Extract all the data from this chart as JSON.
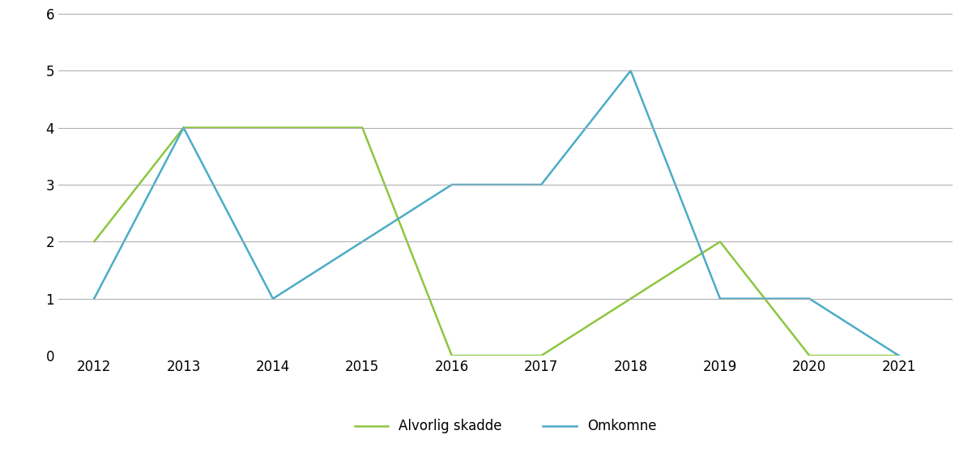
{
  "years": [
    2012,
    2013,
    2014,
    2015,
    2016,
    2017,
    2018,
    2019,
    2020,
    2021
  ],
  "alvorlig_skadde": [
    2,
    4,
    4,
    4,
    0,
    0,
    1,
    2,
    0,
    0
  ],
  "omkomne": [
    1,
    4,
    1,
    2,
    3,
    3,
    5,
    1,
    1,
    0
  ],
  "alvorlig_color": "#8dc63f",
  "omkomne_color": "#4bacc6",
  "line_width": 1.8,
  "ylim": [
    0,
    6
  ],
  "yticks": [
    0,
    1,
    2,
    3,
    4,
    5,
    6
  ],
  "background_color": "#ffffff",
  "grid_color": "#aaaaaa",
  "legend_alvorlig": "Alvorlig skadde",
  "legend_omkomne": "Omkomne",
  "tick_fontsize": 12,
  "legend_fontsize": 12,
  "xlim_left": 2011.6,
  "xlim_right": 2021.6
}
